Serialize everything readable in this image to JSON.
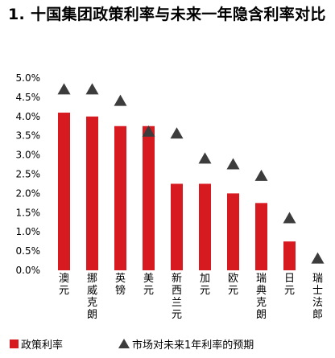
{
  "chart_data": {
    "type": "bar",
    "title": "1. 十国集团政策利率与未来一年隐含利率对比",
    "categories": [
      "澳元",
      "挪威克朗",
      "英镑",
      "美元",
      "新西兰元",
      "加元",
      "欧元",
      "瑞典克朗",
      "日元",
      "瑞士法郎"
    ],
    "series": [
      {
        "name": "政策利率",
        "kind": "bar",
        "color": "#d71920",
        "values": [
          4.1,
          4.0,
          3.75,
          3.75,
          2.25,
          2.25,
          2.0,
          1.75,
          0.75,
          0.0
        ]
      },
      {
        "name": "市场对未来1年利率的预期",
        "kind": "marker",
        "marker": "triangle",
        "color": "#3c3c3c",
        "values": [
          4.7,
          4.7,
          4.4,
          3.6,
          3.55,
          2.9,
          2.75,
          2.45,
          1.35,
          0.3
        ]
      }
    ],
    "ylim": [
      0,
      5
    ],
    "yticks": [
      "0.0%",
      "0.5%",
      "1.0%",
      "1.5%",
      "2.0%",
      "2.5%",
      "3.0%",
      "3.5%",
      "4.0%",
      "4.5%",
      "5.0%"
    ],
    "grid": false,
    "legend_position": "bottom"
  }
}
